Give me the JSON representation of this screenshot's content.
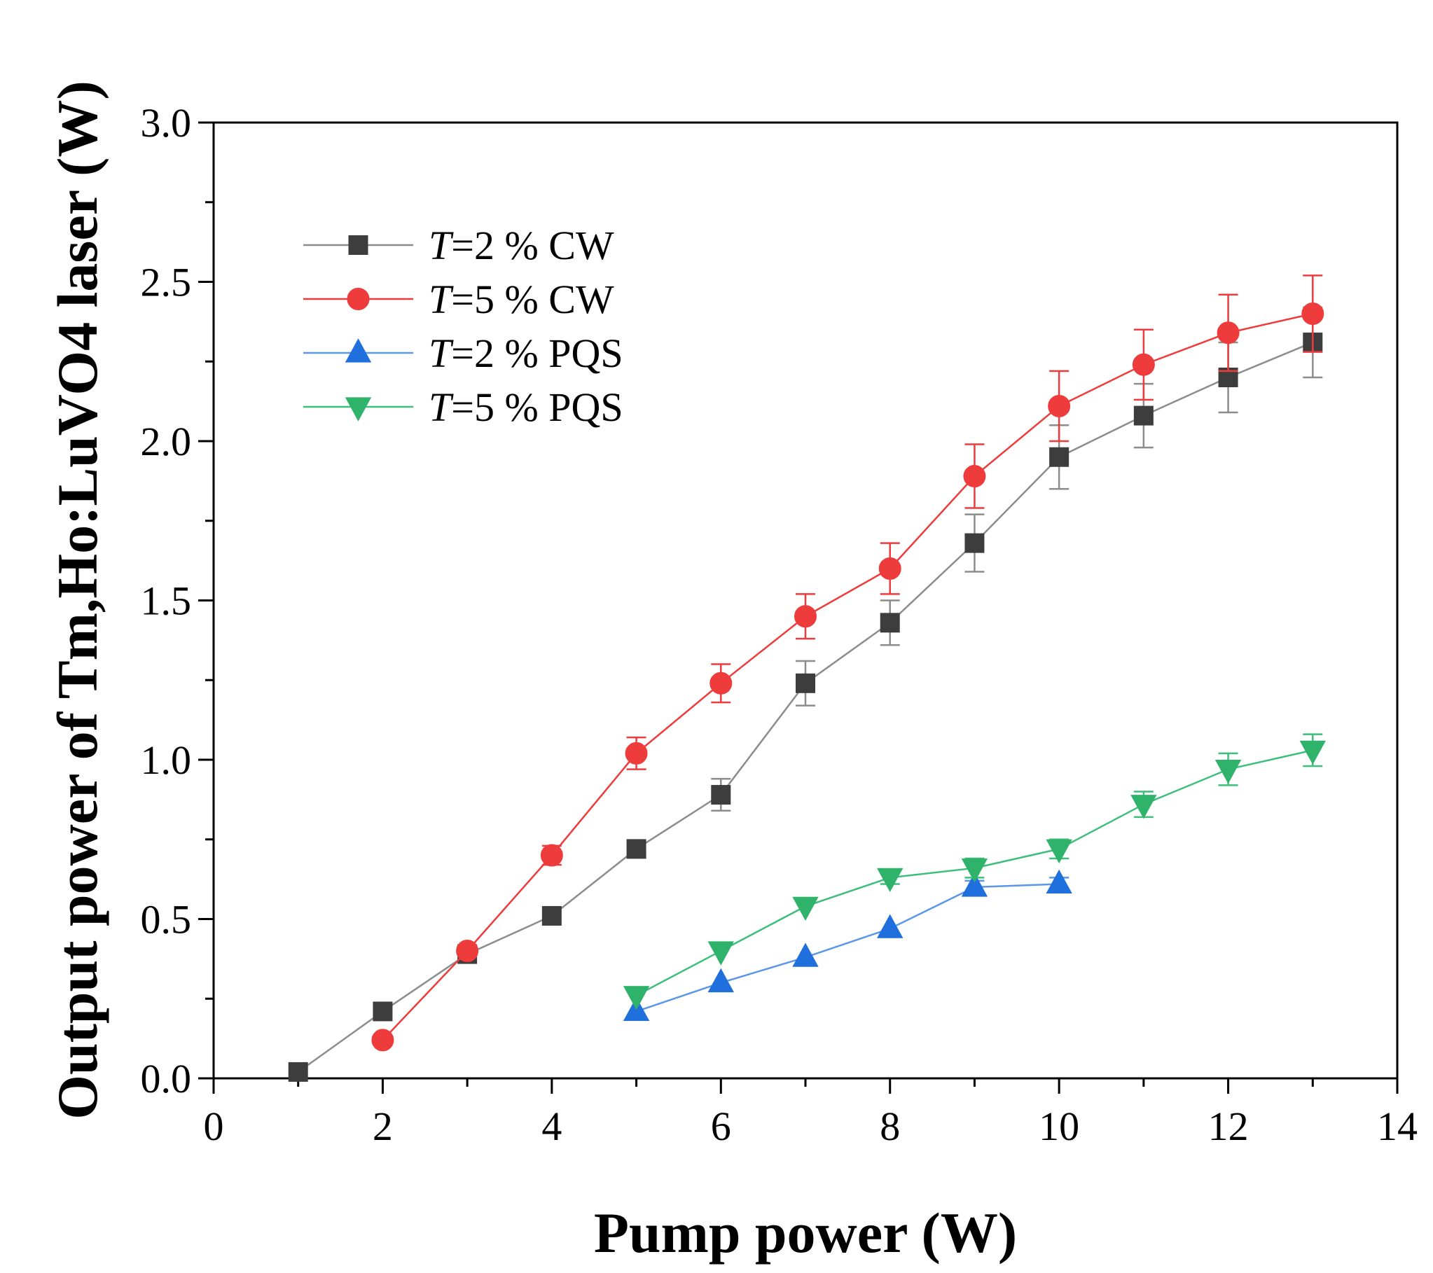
{
  "chart_data": {
    "type": "line",
    "title": "",
    "xlabel": "Pump power (W)",
    "ylabel": "Output power of Tm,Ho:LuVO4 laser (W)",
    "xlim": [
      0,
      14
    ],
    "ylim": [
      0,
      3.0
    ],
    "xticks": [
      "0",
      "2",
      "4",
      "6",
      "8",
      "10",
      "12",
      "14"
    ],
    "yticks": [
      "0.0",
      "0.5",
      "1.0",
      "1.5",
      "2.0",
      "2.5",
      "3.0"
    ],
    "grid": false,
    "legend_position": "top-left",
    "series": [
      {
        "name": "T=2 % CW",
        "label_italic": "T",
        "label_rest": "=2 % CW",
        "color": "#3d3d3d",
        "line_color": "#8c8c8c",
        "marker": "square",
        "x": [
          1,
          2,
          3,
          4,
          5,
          6,
          7,
          8,
          9,
          10,
          11,
          12,
          13
        ],
        "y": [
          0.02,
          0.21,
          0.39,
          0.51,
          0.72,
          0.89,
          1.24,
          1.43,
          1.68,
          1.95,
          2.08,
          2.2,
          2.31
        ],
        "err": [
          0,
          0,
          0,
          0,
          0.02,
          0.05,
          0.07,
          0.07,
          0.09,
          0.1,
          0.1,
          0.11,
          0.11
        ]
      },
      {
        "name": "T=5 % CW",
        "label_italic": "T",
        "label_rest": "=5 % CW",
        "color": "#ee3b3b",
        "line_color": "#ee3b3b",
        "marker": "circle",
        "x": [
          2,
          3,
          4,
          5,
          6,
          7,
          8,
          9,
          10,
          11,
          12,
          13
        ],
        "y": [
          0.12,
          0.4,
          0.7,
          1.02,
          1.24,
          1.45,
          1.6,
          1.89,
          2.11,
          2.24,
          2.34,
          2.4
        ],
        "err": [
          0,
          0,
          0.03,
          0.05,
          0.06,
          0.07,
          0.08,
          0.1,
          0.11,
          0.11,
          0.12,
          0.12
        ]
      },
      {
        "name": "T=2 % PQS",
        "label_italic": "T",
        "label_rest": "=2 % PQS",
        "color": "#1f6fdc",
        "line_color": "#5a97e6",
        "marker": "triangle-up",
        "x": [
          5,
          6,
          7,
          8,
          9,
          10
        ],
        "y": [
          0.21,
          0.3,
          0.38,
          0.47,
          0.6,
          0.61
        ],
        "err": [
          0,
          0,
          0,
          0,
          0.02,
          0.02
        ]
      },
      {
        "name": "T=5 % PQS",
        "label_italic": "T",
        "label_rest": "=5 % PQS",
        "color": "#2fb36b",
        "line_color": "#3cbf7a",
        "marker": "triangle-down",
        "x": [
          5,
          6,
          7,
          8,
          9,
          10,
          11,
          12,
          13
        ],
        "y": [
          0.26,
          0.4,
          0.54,
          0.63,
          0.66,
          0.72,
          0.86,
          0.97,
          1.03
        ],
        "err": [
          0,
          0,
          0,
          0.02,
          0.03,
          0.03,
          0.04,
          0.05,
          0.05
        ]
      }
    ]
  }
}
